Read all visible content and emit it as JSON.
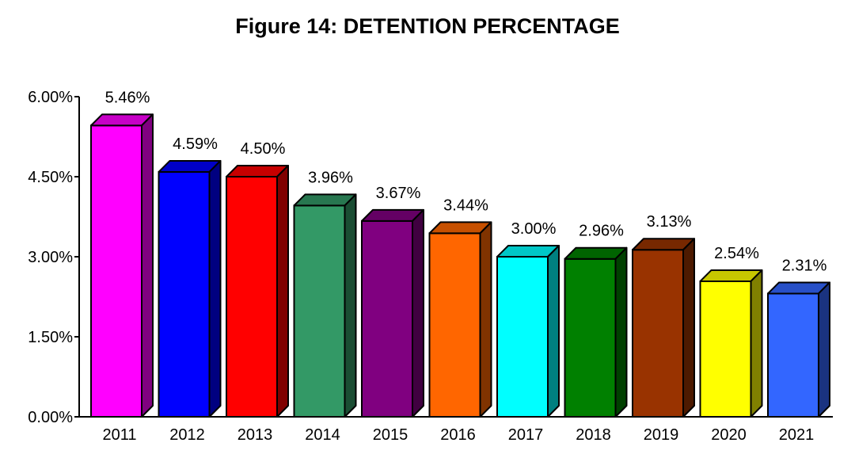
{
  "chart_data": {
    "type": "bar",
    "title": "Figure 14: DETENTION PERCENTAGE",
    "xlabel": "",
    "ylabel": "",
    "ylim": [
      0,
      6
    ],
    "y_ticks": [
      0,
      1.5,
      3,
      4.5,
      6
    ],
    "y_tick_labels": [
      "0.00%",
      "1.50%",
      "3.00%",
      "4.50%",
      "6.00%"
    ],
    "categories": [
      "2011",
      "2012",
      "2013",
      "2014",
      "2015",
      "2016",
      "2017",
      "2018",
      "2019",
      "2020",
      "2021"
    ],
    "values": [
      5.46,
      4.59,
      4.5,
      3.96,
      3.67,
      3.44,
      3.0,
      2.96,
      3.13,
      2.54,
      2.31
    ],
    "value_labels": [
      "5.46%",
      "4.59%",
      "4.50%",
      "3.96%",
      "3.67%",
      "3.44%",
      "3.00%",
      "2.96%",
      "3.13%",
      "2.54%",
      "2.31%"
    ],
    "colors": [
      "#ff00ff",
      "#0000ff",
      "#ff0000",
      "#339966",
      "#800080",
      "#ff6600",
      "#00ffff",
      "#008000",
      "#993300",
      "#ffff00",
      "#3366ff"
    ],
    "grid": false,
    "legend": "none",
    "bar_style": "3d"
  }
}
